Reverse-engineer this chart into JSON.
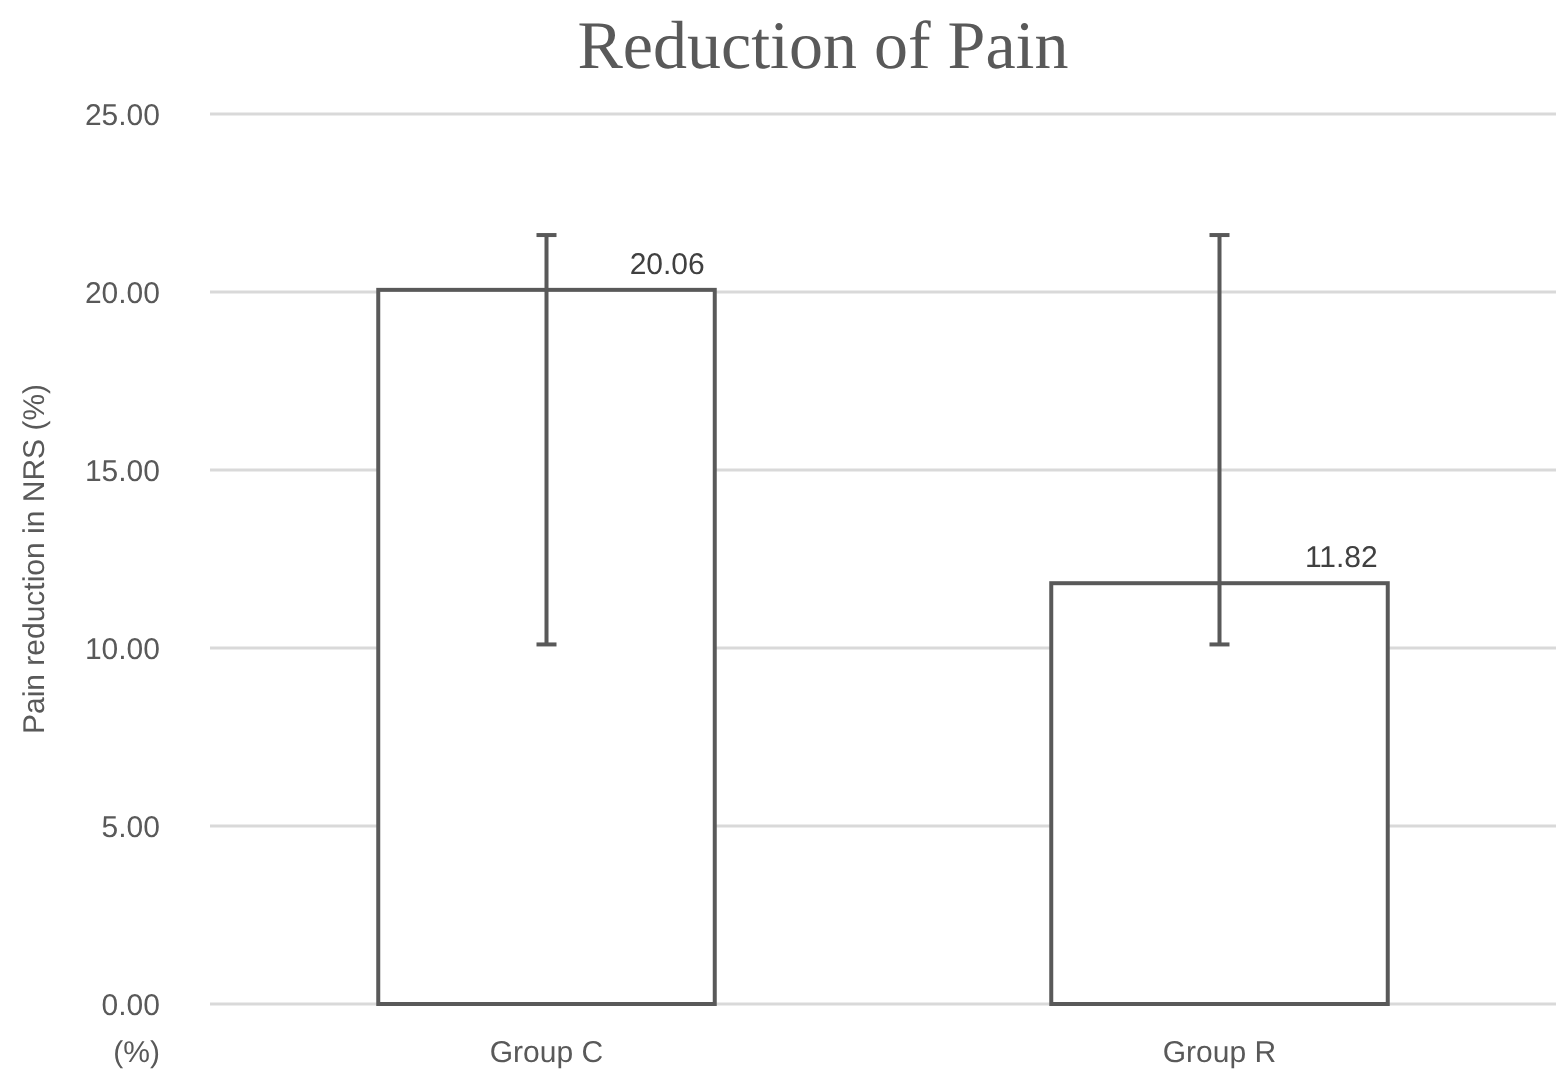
{
  "chart_data": {
    "type": "bar",
    "title": "Reduction of Pain",
    "ylabel": "Pain reduction in NRS (%)",
    "categories": [
      "Group C",
      "Group R"
    ],
    "series": [
      {
        "color": "#595959",
        "values": [
          20.06,
          11.82
        ],
        "errors": [
          [
            10.1,
            21.6
          ],
          [
            10.1,
            21.6
          ]
        ]
      }
    ],
    "ylim": [
      0,
      25
    ],
    "yticks": [
      {
        "value": 0,
        "label": "0.00"
      },
      {
        "value": 5,
        "label": "5.00"
      },
      {
        "value": 10,
        "label": "10.00"
      },
      {
        "value": 15,
        "label": "15.00"
      },
      {
        "value": 20,
        "label": "20.00"
      },
      {
        "value": 25,
        "label": "25.00"
      }
    ],
    "grid": "y",
    "data_labels": true,
    "annotations": [
      "(%)"
    ]
  }
}
